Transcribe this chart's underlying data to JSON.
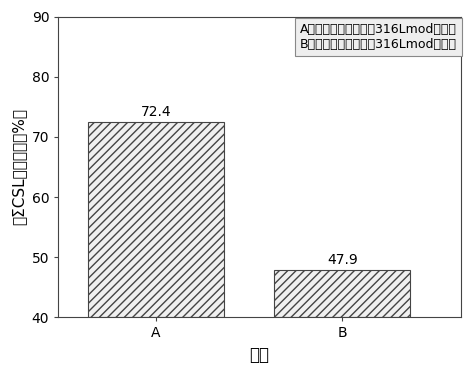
{
  "categories": [
    "A",
    "B"
  ],
  "values": [
    72.4,
    47.9
  ],
  "bar_color": "#f0f0f0",
  "hatch": "////",
  "xlabel": "样品",
  "ylabel": "低ΣCSL晶界比例（%）",
  "ylim": [
    40,
    90
  ],
  "yticks": [
    40,
    50,
    60,
    70,
    80,
    90
  ],
  "legend_lines": [
    "A：经本工艺处理后的316Lmod不锈錢",
    "B：未经本工艺处理的316Lmod不锈錢"
  ],
  "bar_width": 0.32,
  "bar_edge_color": "#444444",
  "annotation_fontsize": 10,
  "xlabel_fontsize": 12,
  "ylabel_fontsize": 11,
  "tick_fontsize": 10,
  "legend_fontsize": 9,
  "legend_box_color": "#eeeeee",
  "x_positions": [
    0.28,
    0.72
  ]
}
